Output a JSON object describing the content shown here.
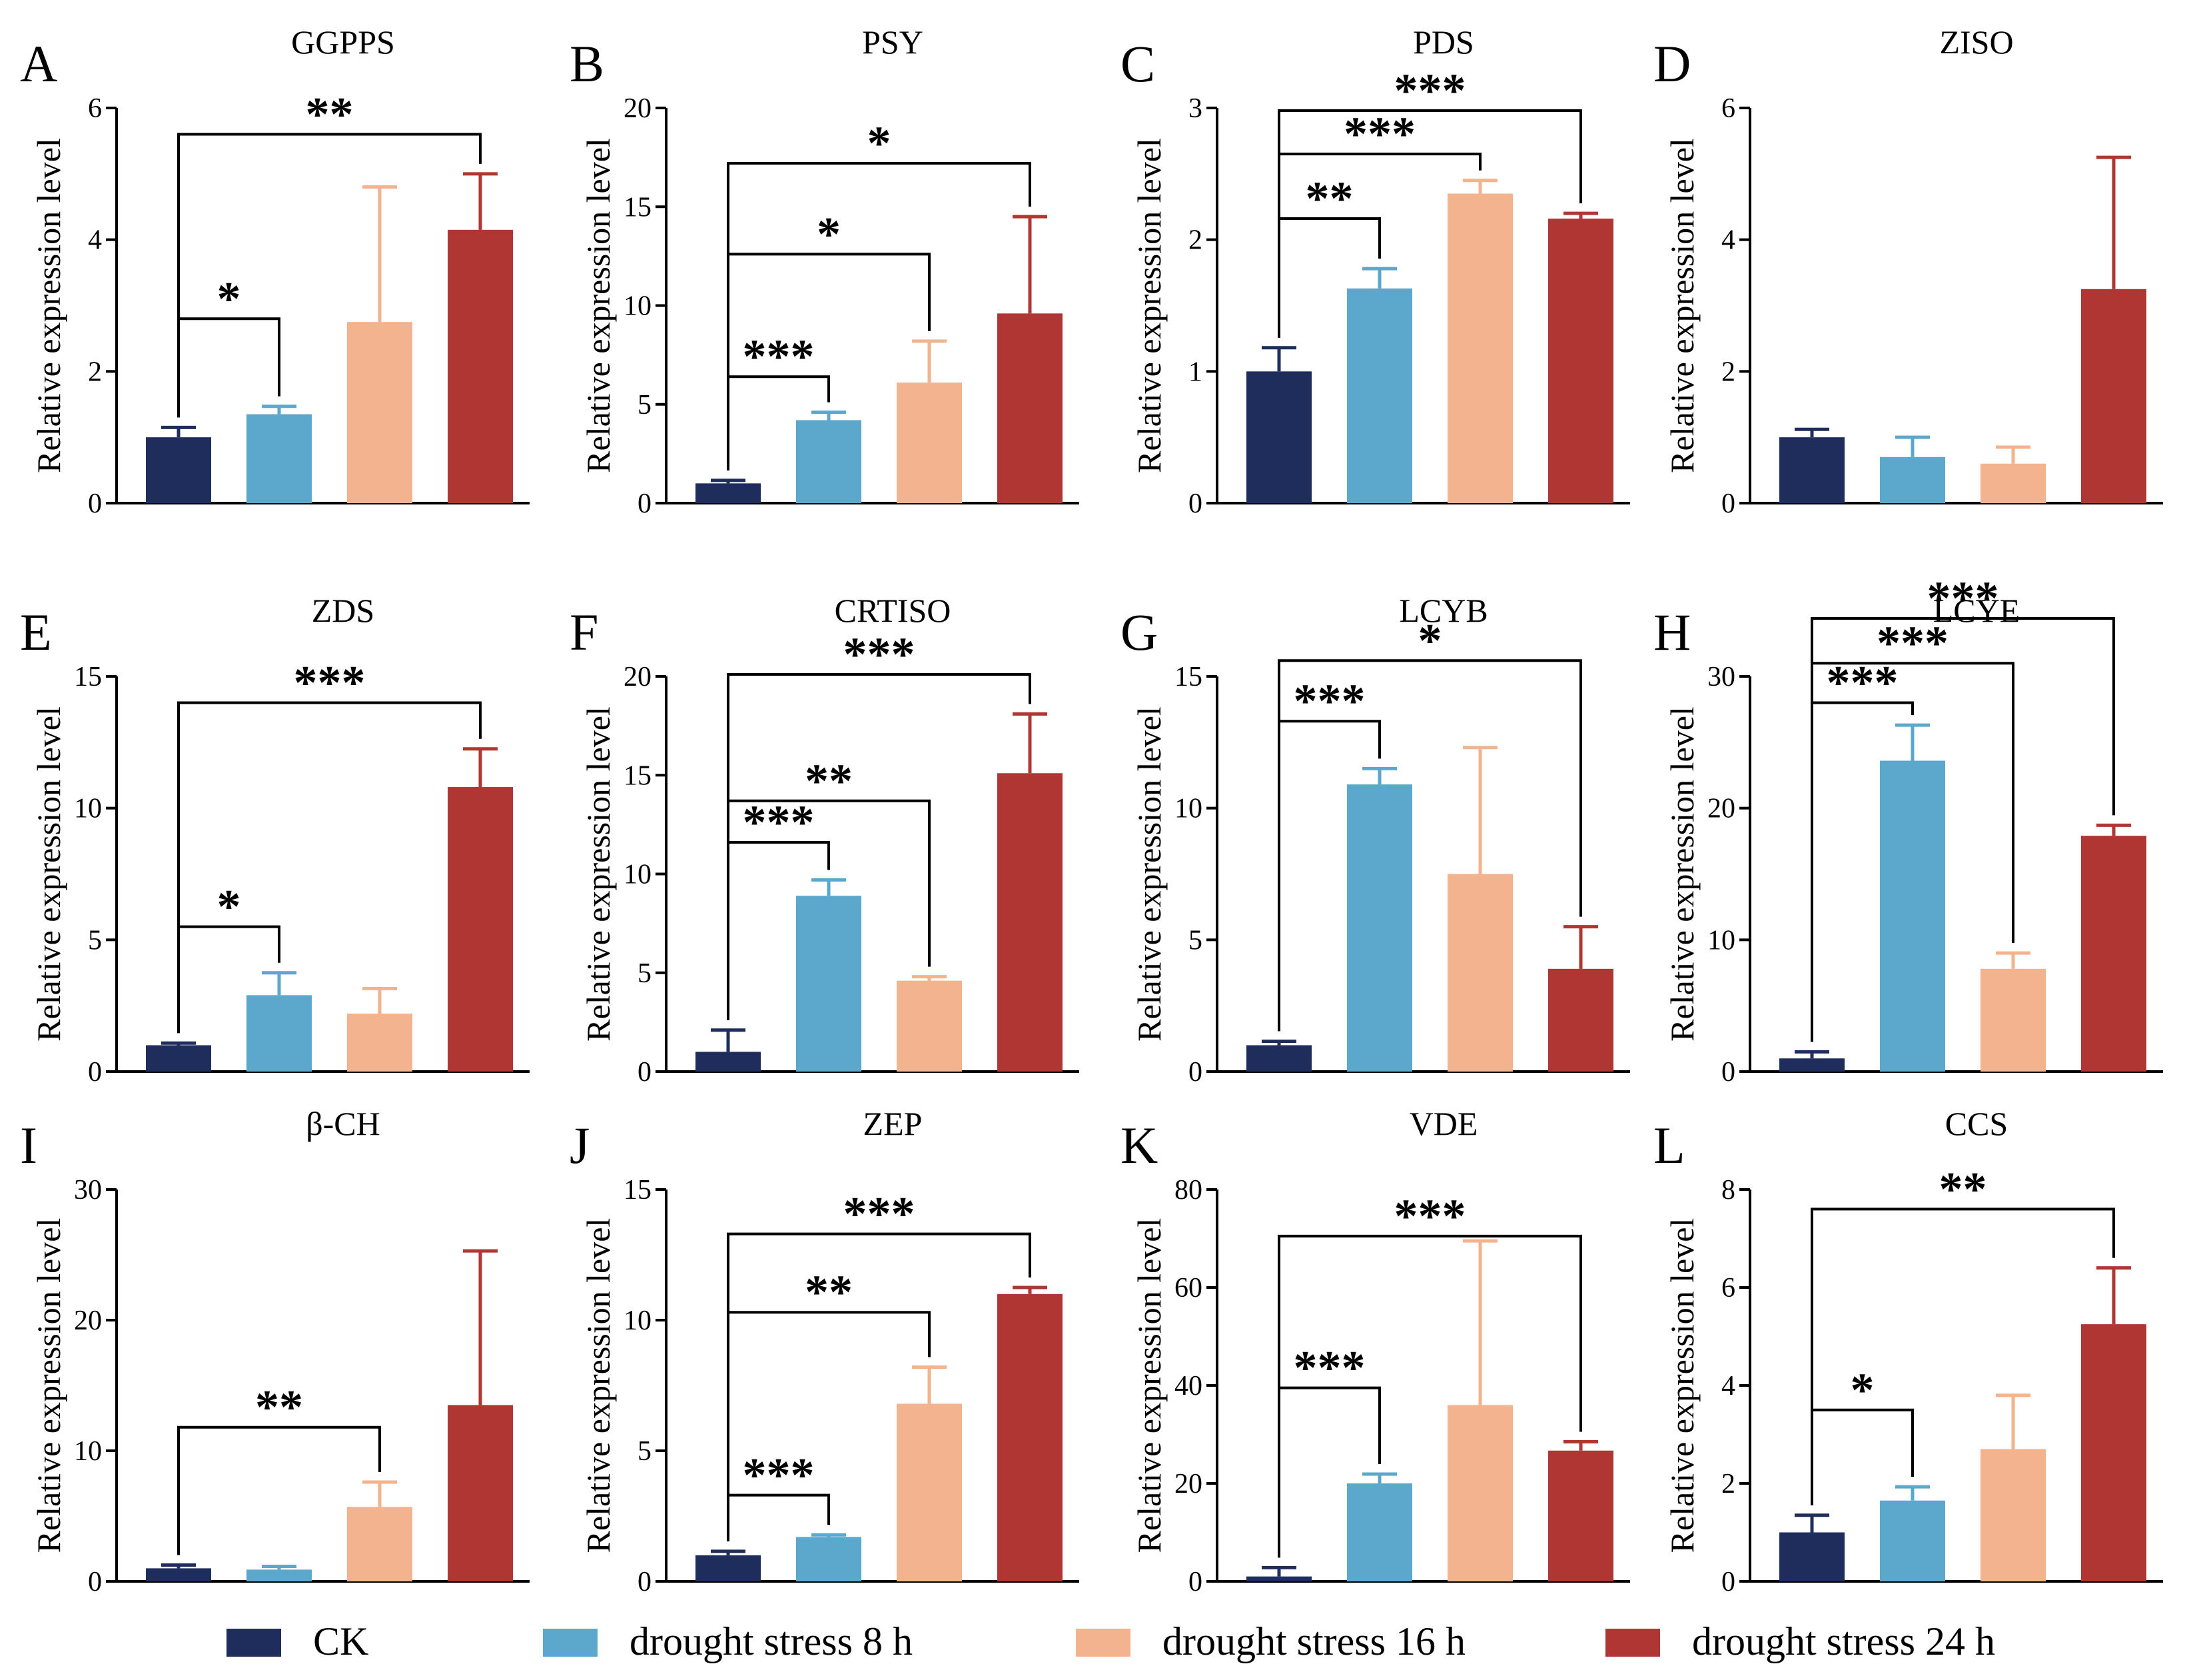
{
  "figure": {
    "ylabel": "Relative expression level",
    "series_names": [
      "CK",
      "drought stress 8 h",
      "drought stress 16 h",
      "drought stress 24 h"
    ],
    "series_colors": [
      "#1f2d5c",
      "#5ba8cc",
      "#f2b38e",
      "#b03633"
    ],
    "legend_icon": "filled-rectangle-swatch"
  },
  "chart_data": [
    {
      "panel": "A",
      "title": "GGPPS",
      "type": "bar",
      "ylim": [
        0,
        6
      ],
      "ticks": [
        0,
        2,
        4,
        6
      ],
      "categories": [
        "CK",
        "drought stress 8 h",
        "drought stress 16 h",
        "drought stress 24 h"
      ],
      "values": [
        1.0,
        1.35,
        2.75,
        4.15
      ],
      "errors": [
        0.15,
        0.12,
        2.05,
        0.85
      ],
      "significance": [
        {
          "to": 1,
          "label": "*",
          "level": 2.8
        },
        {
          "to": 3,
          "label": "**",
          "level": 5.6
        }
      ]
    },
    {
      "panel": "B",
      "title": "PSY",
      "type": "bar",
      "ylim": [
        0,
        20
      ],
      "ticks": [
        0,
        5,
        10,
        15,
        20
      ],
      "categories": [
        "CK",
        "drought stress 8 h",
        "drought stress 16 h",
        "drought stress 24 h"
      ],
      "values": [
        1.0,
        4.2,
        6.1,
        9.6
      ],
      "errors": [
        0.15,
        0.4,
        2.1,
        4.9
      ],
      "significance": [
        {
          "to": 1,
          "label": "***",
          "level": 6.4
        },
        {
          "to": 2,
          "label": "*",
          "level": 12.6
        },
        {
          "to": 3,
          "label": "*",
          "level": 17.2
        }
      ]
    },
    {
      "panel": "C",
      "title": "PDS",
      "type": "bar",
      "ylim": [
        0,
        3
      ],
      "ticks": [
        0,
        1,
        2,
        3
      ],
      "categories": [
        "CK",
        "drought stress 8 h",
        "drought stress 16 h",
        "drought stress 24 h"
      ],
      "values": [
        1.0,
        1.63,
        2.35,
        2.16
      ],
      "errors": [
        0.18,
        0.15,
        0.1,
        0.04
      ],
      "significance": [
        {
          "to": 1,
          "label": "**",
          "level": 2.16
        },
        {
          "to": 2,
          "label": "***",
          "level": 2.65
        },
        {
          "to": 3,
          "label": "***",
          "level": 2.98
        }
      ]
    },
    {
      "panel": "D",
      "title": "ZISO",
      "type": "bar",
      "ylim": [
        0,
        6
      ],
      "ticks": [
        0,
        2,
        4,
        6
      ],
      "categories": [
        "CK",
        "drought stress 8 h",
        "drought stress 16 h",
        "drought stress 24 h"
      ],
      "values": [
        1.0,
        0.7,
        0.6,
        3.25
      ],
      "errors": [
        0.12,
        0.3,
        0.25,
        2.0
      ],
      "significance": []
    },
    {
      "panel": "E",
      "title": "ZDS",
      "type": "bar",
      "ylim": [
        0,
        15
      ],
      "ticks": [
        0,
        5,
        10,
        15
      ],
      "categories": [
        "CK",
        "drought stress 8 h",
        "drought stress 16 h",
        "drought stress 24 h"
      ],
      "values": [
        1.0,
        2.9,
        2.2,
        10.8
      ],
      "errors": [
        0.08,
        0.85,
        0.95,
        1.45
      ],
      "significance": [
        {
          "to": 1,
          "label": "*",
          "level": 5.5
        },
        {
          "to": 3,
          "label": "***",
          "level": 14.0
        }
      ]
    },
    {
      "panel": "F",
      "title": "CRTISO",
      "type": "bar",
      "ylim": [
        0,
        20
      ],
      "ticks": [
        0,
        5,
        10,
        15,
        20
      ],
      "categories": [
        "CK",
        "drought stress 8 h",
        "drought stress 16 h",
        "drought stress 24 h"
      ],
      "values": [
        1.0,
        8.9,
        4.6,
        15.1
      ],
      "errors": [
        1.1,
        0.8,
        0.2,
        3.0
      ],
      "significance": [
        {
          "to": 1,
          "label": "***",
          "level": 11.6
        },
        {
          "to": 2,
          "label": "**",
          "level": 13.7
        },
        {
          "to": 3,
          "label": "***",
          "level": 20.1
        }
      ]
    },
    {
      "panel": "G",
      "title": "LCYB",
      "type": "bar",
      "ylim": [
        0,
        15
      ],
      "ticks": [
        0,
        5,
        10,
        15
      ],
      "categories": [
        "CK",
        "drought stress 8 h",
        "drought stress 16 h",
        "drought stress 24 h"
      ],
      "values": [
        1.0,
        10.9,
        7.5,
        3.9
      ],
      "errors": [
        0.15,
        0.6,
        4.8,
        1.6
      ],
      "significance": [
        {
          "to": 1,
          "label": "***",
          "level": 13.3
        },
        {
          "to": 3,
          "label": "*",
          "level": 15.6
        }
      ]
    },
    {
      "panel": "H",
      "title": "LCYE",
      "type": "bar",
      "ylim": [
        0,
        30
      ],
      "ticks": [
        0,
        10,
        20,
        30
      ],
      "categories": [
        "CK",
        "drought stress 8 h",
        "drought stress 16 h",
        "drought stress 24 h"
      ],
      "values": [
        1.0,
        23.6,
        7.8,
        17.9
      ],
      "errors": [
        0.5,
        2.7,
        1.2,
        0.8
      ],
      "significance": [
        {
          "to": 1,
          "label": "***",
          "level": 28.0
        },
        {
          "to": 2,
          "label": "***",
          "level": 31.0
        },
        {
          "to": 3,
          "label": "***",
          "level": 34.4
        }
      ]
    },
    {
      "panel": "I",
      "title": "β-CH",
      "type": "bar",
      "ylim": [
        0,
        30
      ],
      "ticks": [
        0,
        10,
        20,
        30
      ],
      "categories": [
        "CK",
        "drought stress 8 h",
        "drought stress 16 h",
        "drought stress 24 h"
      ],
      "values": [
        1.0,
        0.9,
        5.7,
        13.5
      ],
      "errors": [
        0.25,
        0.25,
        1.9,
        11.8
      ],
      "significance": [
        {
          "to": 2,
          "label": "**",
          "level": 11.8
        }
      ]
    },
    {
      "panel": "J",
      "title": "ZEP",
      "type": "bar",
      "ylim": [
        0,
        15
      ],
      "ticks": [
        0,
        5,
        10,
        15
      ],
      "categories": [
        "CK",
        "drought stress 8 h",
        "drought stress 16 h",
        "drought stress 24 h"
      ],
      "values": [
        1.0,
        1.7,
        6.8,
        11.0
      ],
      "errors": [
        0.15,
        0.08,
        1.4,
        0.25
      ],
      "significance": [
        {
          "to": 1,
          "label": "***",
          "level": 3.3
        },
        {
          "to": 2,
          "label": "**",
          "level": 10.3
        },
        {
          "to": 3,
          "label": "***",
          "level": 13.3
        }
      ]
    },
    {
      "panel": "K",
      "title": "VDE",
      "type": "bar",
      "ylim": [
        0,
        80
      ],
      "ticks": [
        0,
        20,
        40,
        60,
        80
      ],
      "categories": [
        "CK",
        "drought stress 8 h",
        "drought stress 16 h",
        "drought stress 24 h"
      ],
      "values": [
        1.0,
        20.0,
        36.0,
        26.7
      ],
      "errors": [
        1.8,
        1.9,
        33.5,
        1.8
      ],
      "significance": [
        {
          "to": 1,
          "label": "***",
          "level": 39.5
        },
        {
          "to": 3,
          "label": "***",
          "level": 70.5
        }
      ]
    },
    {
      "panel": "L",
      "title": "CCS",
      "type": "bar",
      "ylim": [
        0,
        8
      ],
      "ticks": [
        0,
        2,
        4,
        6,
        8
      ],
      "categories": [
        "CK",
        "drought stress 8 h",
        "drought stress 16 h",
        "drought stress 24 h"
      ],
      "values": [
        1.0,
        1.65,
        2.7,
        5.25
      ],
      "errors": [
        0.35,
        0.28,
        1.1,
        1.15
      ],
      "significance": [
        {
          "to": 1,
          "label": "*",
          "level": 3.5
        },
        {
          "to": 3,
          "label": "**",
          "level": 7.6
        }
      ]
    }
  ]
}
